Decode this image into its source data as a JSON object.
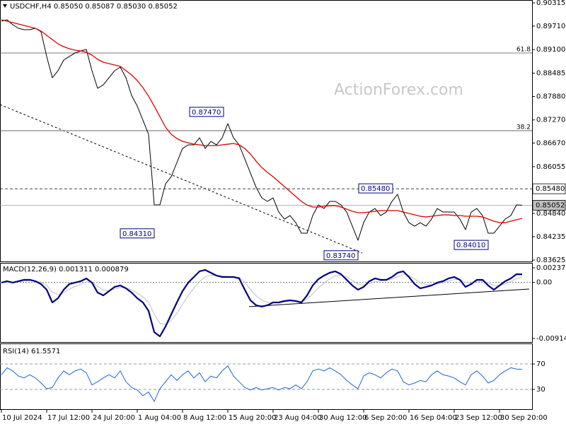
{
  "chart_data": [
    {
      "type": "line",
      "title": "USDCHF,H4  0.85050 0.85087 0.85030 0.85052",
      "watermark": "ActionForex.com",
      "ylim": [
        0.83589,
        0.90389
      ],
      "yticks": [
        0.90315,
        {
          "value": 0.8971,
          "label": "0.89710"
        },
        {
          "value": 0.891,
          "label": "0.89100"
        },
        0.88485,
        {
          "value": 0.8788,
          "label": "0.87880"
        },
        {
          "value": 0.8727,
          "label": "0.87270"
        },
        {
          "value": 0.8667,
          "label": "0.86670"
        },
        0.86055,
        {
          "value": 0.8484,
          "label": "0.84840"
        },
        0.84235,
        0.83625
      ],
      "grid": false,
      "series": [
        {
          "color": "#000000",
          "line_width": 1,
          "values": [
            0.89838,
            0.89874,
            0.89746,
            0.89654,
            0.89617,
            0.89617,
            0.89654,
            0.89562,
            0.88919,
            0.88367,
            0.88551,
            0.88827,
            0.88919,
            0.89011,
            0.89066,
            0.89103,
            0.88551,
            0.88092,
            0.88183,
            0.88367,
            0.88551,
            0.88643,
            0.88367,
            0.87908,
            0.87632,
            0.87264,
            0.86897,
            0.85059,
            0.85059,
            0.8561,
            0.85794,
            0.86162,
            0.86529,
            0.86621,
            0.86621,
            0.86805,
            0.86529,
            0.86713,
            0.86621,
            0.86805,
            0.87173,
            0.86805,
            0.86621,
            0.86254,
            0.85886,
            0.85518,
            0.85243,
            0.85151,
            0.85243,
            0.84875,
            0.84691,
            0.84783,
            0.84599,
            0.84324,
            0.84324,
            0.84783,
            0.85059,
            0.84967,
            0.85151,
            0.85151,
            0.85059,
            0.84875,
            0.84507,
            0.8414,
            0.84599,
            0.84875,
            0.84967,
            0.84783,
            0.84875,
            0.85151,
            0.85335,
            0.84875,
            0.84599,
            0.84507,
            0.84599,
            0.84507,
            0.84691,
            0.84967,
            0.84875,
            0.84875,
            0.84875,
            0.84691,
            0.84416,
            0.84875,
            0.84967,
            0.84783,
            0.84324,
            0.84324,
            0.84507,
            0.84691,
            0.84783,
            0.85059,
            0.85052
          ]
        },
        {
          "color": "#e00000",
          "line_width": 1.3,
          "values": [
            0.89874,
            0.89838,
            0.89801,
            0.89764,
            0.89727,
            0.89691,
            0.89654,
            0.8958,
            0.8947,
            0.8936,
            0.89249,
            0.89176,
            0.89121,
            0.89084,
            0.89066,
            0.89029,
            0.88955,
            0.88845,
            0.88772,
            0.88735,
            0.88698,
            0.88661,
            0.88551,
            0.88441,
            0.88294,
            0.8811,
            0.87889,
            0.87632,
            0.87356,
            0.87081,
            0.86897,
            0.86787,
            0.86713,
            0.86676,
            0.86639,
            0.86621,
            0.86603,
            0.86603,
            0.86603,
            0.86621,
            0.86639,
            0.86658,
            0.86621,
            0.86529,
            0.86382,
            0.86198,
            0.86033,
            0.85904,
            0.85794,
            0.85665,
            0.85537,
            0.85408,
            0.85279,
            0.85151,
            0.85059,
            0.85004,
            0.85004,
            0.85022,
            0.8504,
            0.8504,
            0.85004,
            0.84949,
            0.84894,
            0.84857,
            0.84857,
            0.84875,
            0.84894,
            0.84912,
            0.84912,
            0.84912,
            0.84912,
            0.84875,
            0.84838,
            0.84801,
            0.84765,
            0.84746,
            0.84765,
            0.84783,
            0.84801,
            0.84801,
            0.84783,
            0.84783,
            0.84765,
            0.84765,
            0.84765,
            0.84746,
            0.84691,
            0.84636,
            0.84599,
            0.84599,
            0.84636,
            0.84673,
            0.8471
          ]
        }
      ],
      "levels": [
        {
          "name": "61.8",
          "value": 0.8901
        },
        {
          "name": "38.2",
          "value": 0.8699
        }
      ],
      "hlines": [
        {
          "value": 0.8548,
          "label": "0.85480",
          "dashed": true,
          "label_color": "#ffffff"
        },
        {
          "value": 0.85052,
          "label": "0.85052",
          "dashed": false,
          "label_color": "#c0c0c0"
        }
      ],
      "annotations": [
        {
          "value": 0.8747,
          "label": "0.87470"
        },
        {
          "value": 0.8431,
          "label": "0.84310"
        },
        {
          "value": 0.8374,
          "label": "0.83740"
        },
        {
          "value": 0.8548,
          "label": "0.85480"
        },
        {
          "value": 0.8401,
          "label": "0.84010"
        }
      ]
    },
    {
      "type": "line",
      "title": "MACD(12,26,9) 0.001311 0.000879",
      "ylim": [
        -0.00972,
        0.00318
      ],
      "yticks": [
        0.002376,
        {
          "value": 0,
          "label": "0.00"
        },
        -0.00914
      ],
      "grid": false,
      "zero_line": true,
      "series": [
        {
          "color": "#c0c0c0",
          "line_width": 1,
          "values": [
            -4e-05,
            5e-05,
            1e-05,
            8e-05,
            0.00022,
            0.0003,
            0.00026,
            5e-05,
            -0.00045,
            -0.00158,
            -0.00198,
            -0.00167,
            -0.00111,
            -0.00068,
            -0.00033,
            6e-05,
            2e-05,
            -0.00065,
            -0.00124,
            -0.00132,
            -0.00109,
            -0.00085,
            -0.0009,
            -0.0012,
            -0.00175,
            -0.00236,
            -0.00328,
            -0.00521,
            -0.00665,
            -0.00686,
            -0.00621,
            -0.00503,
            -0.00359,
            -0.00217,
            -0.00095,
            0.00015,
            0.0009,
            0.00117,
            0.00115,
            0.00104,
            0.00098,
            0.00094,
            0.00082,
            1e-05,
            -0.00116,
            -0.00219,
            -0.0029,
            -0.00323,
            -0.00325,
            -0.00326,
            -0.00317,
            -0.00307,
            -0.00306,
            -0.00314,
            -0.00273,
            -0.00184,
            -0.00089,
            -9e-05,
            0.00058,
            0.00107,
            0.00118,
            0.00088,
            0.00033,
            -0.00028,
            -0.00046,
            -0.0002,
            0.00014,
            0.00025,
            0.00032,
            0.00054,
            0.00095,
            0.00129,
            0.00113,
            0.00057,
            -5e-05,
            -0.00033,
            -0.0004,
            -0.00026,
            -8e-05,
            0.00021,
            0.00048,
            0.00046,
            -2e-05,
            -0.00012,
            0.0001,
            0.00023,
            -6e-05,
            -0.00052,
            -0.00051,
            -0.00023,
            0.00012,
            0.00061,
            0.000879
          ]
        },
        {
          "color": "#000080",
          "line_width": 2.2,
          "values": [
            -4e-05,
            0.00019,
            -4e-05,
            0.00019,
            0.00042,
            0.00042,
            0.00019,
            -0.00027,
            -0.0012,
            -0.00327,
            -0.00258,
            -0.0012,
            -0.00027,
            -4e-05,
            0.00019,
            0.00065,
            -4e-05,
            -0.00166,
            -0.00212,
            -0.00143,
            -0.00074,
            -0.0005,
            -0.00097,
            -0.00166,
            -0.00258,
            -0.00327,
            -0.00465,
            -0.00811,
            -0.0088,
            -0.00718,
            -0.00523,
            -0.00327,
            -0.00143,
            -4e-05,
            0.00088,
            0.0018,
            0.00203,
            0.00157,
            0.00111,
            0.00088,
            0.00088,
            0.00088,
            0.00065,
            -0.0012,
            -0.00292,
            -0.00373,
            -0.00396,
            -0.00373,
            -0.00327,
            -0.00327,
            -0.00304,
            -0.00292,
            -0.00304,
            -0.00327,
            -0.00212,
            -0.0005,
            0.00053,
            0.00111,
            0.00157,
            0.0018,
            0.00134,
            0.00042,
            -0.0005,
            -0.0012,
            -0.00074,
            0.00019,
            0.00065,
            0.00042,
            0.00042,
            0.00088,
            0.00157,
            0.0018,
            0.00088,
            -0.00027,
            -0.00097,
            -0.00074,
            -0.0005,
            -4e-05,
            0.00019,
            0.00065,
            0.00088,
            0.00042,
            -0.00074,
            -0.00027,
            0.00042,
            0.00042,
            -0.0005,
            -0.0012,
            -0.0005,
            0.00019,
            0.00065,
            0.00134,
            0.001311
          ]
        }
      ]
    },
    {
      "type": "line",
      "title": "RSI(14) 61.5571",
      "ylim": [
        0,
        100
      ],
      "yticks": [
        70,
        30
      ],
      "grid": true,
      "categories": [
        "10 Jul 2024",
        null,
        null,
        null,
        null,
        null,
        null,
        null,
        "17 Jul 12:00",
        null,
        null,
        null,
        null,
        null,
        null,
        null,
        "24 Jul 20:00",
        null,
        null,
        null,
        null,
        null,
        null,
        null,
        "1 Aug 04:00",
        null,
        null,
        null,
        null,
        null,
        null,
        null,
        "8 Aug 12:00",
        null,
        null,
        null,
        null,
        null,
        null,
        null,
        "15 Aug 20:00",
        null,
        null,
        null,
        null,
        null,
        null,
        null,
        "23 Aug 04:00",
        null,
        null,
        null,
        null,
        null,
        null,
        null,
        "30 Aug 12:00",
        null,
        null,
        null,
        null,
        null,
        null,
        null,
        "6 Sep 20:00",
        null,
        null,
        null,
        null,
        null,
        null,
        null,
        "16 Sep 04:00",
        null,
        null,
        null,
        null,
        null,
        null,
        null,
        "23 Sep 12:00",
        null,
        null,
        null,
        null,
        null,
        null,
        null,
        "30 Sep 20:00",
        null,
        null,
        null,
        null
      ],
      "series": [
        {
          "color": "#1e64dc",
          "line_width": 1,
          "values": [
            53,
            64,
            59,
            51,
            48,
            53,
            48,
            40,
            31,
            33,
            48,
            59,
            53,
            59,
            62,
            56,
            37,
            42,
            48,
            53,
            48,
            59,
            42,
            33,
            29,
            20,
            26,
            11,
            31,
            42,
            53,
            44,
            53,
            59,
            48,
            56,
            42,
            51,
            48,
            59,
            67,
            51,
            42,
            33,
            29,
            33,
            29,
            31,
            33,
            29,
            33,
            31,
            37,
            31,
            42,
            59,
            62,
            59,
            64,
            59,
            53,
            44,
            37,
            31,
            51,
            56,
            53,
            48,
            56,
            62,
            59,
            42,
            37,
            40,
            44,
            42,
            53,
            59,
            53,
            51,
            48,
            42,
            37,
            53,
            59,
            51,
            40,
            44,
            53,
            59,
            64,
            62,
            61.5571
          ]
        }
      ]
    }
  ]
}
